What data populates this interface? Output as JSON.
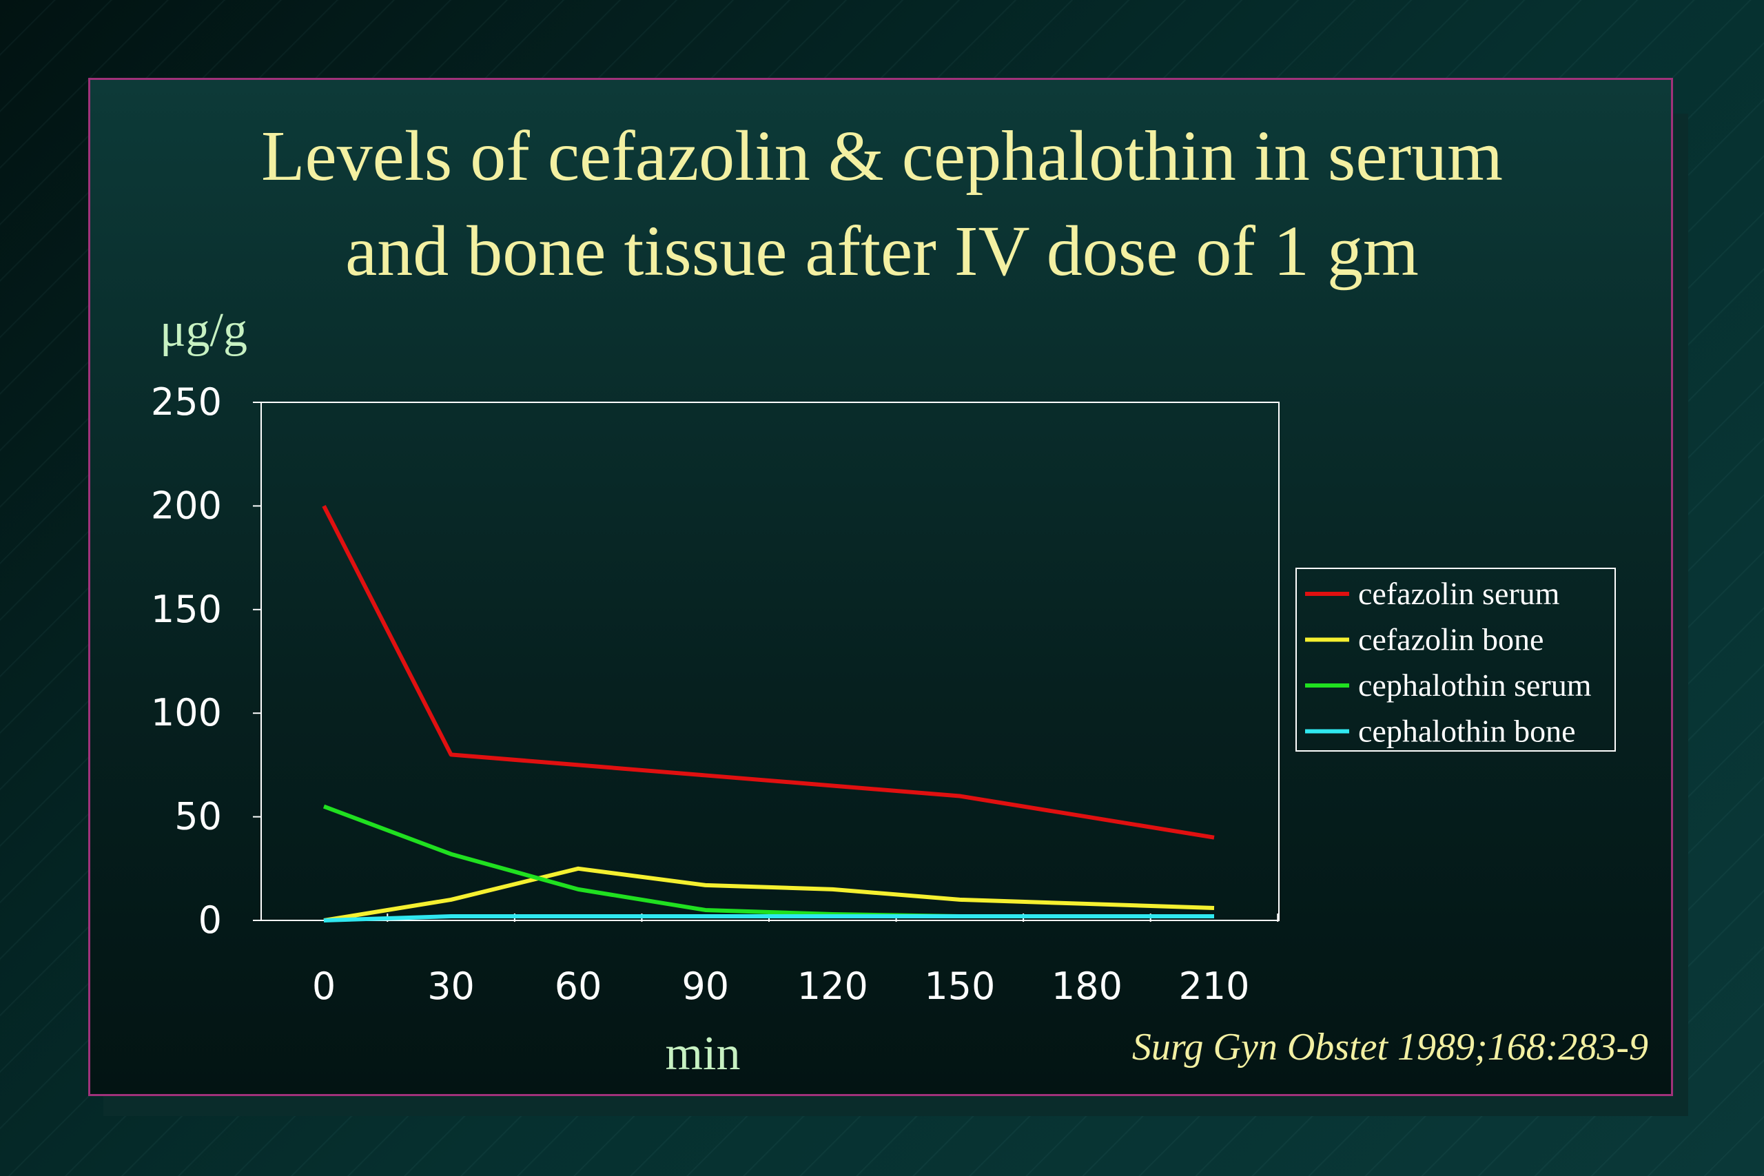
{
  "slide": {
    "title_line1": "Levels of cefazolin & cephalothin in serum",
    "title_line2": "and bone tissue after IV dose of 1 gm",
    "y_units": "μg/g",
    "x_units": "min",
    "citation": "Surg Gyn Obstet 1989;168:283-9"
  },
  "colors": {
    "title": "#f3f0a2",
    "border": "#a0327a",
    "axis_label": "#c7f1c2"
  },
  "chart_data": {
    "type": "line",
    "title": "Levels of cefazolin & cephalothin in serum and bone tissue after IV dose of 1 gm",
    "xlabel": "min",
    "ylabel": "μg/g",
    "x": [
      0,
      30,
      60,
      90,
      120,
      150,
      180,
      210
    ],
    "x_ticks": [
      "0",
      "30",
      "60",
      "90",
      "120",
      "150",
      "180",
      "210"
    ],
    "ylim": [
      0,
      250
    ],
    "y_ticks": [
      "0",
      "50",
      "100",
      "150",
      "200",
      "250"
    ],
    "grid": false,
    "legend_position": "right",
    "series": [
      {
        "name": "cefazolin serum",
        "color": "#e01010",
        "values": [
          200,
          80,
          75,
          70,
          65,
          60,
          50,
          40
        ]
      },
      {
        "name": "cefazolin bone",
        "color": "#f5f030",
        "values": [
          0,
          10,
          25,
          17,
          15,
          10,
          8,
          6
        ]
      },
      {
        "name": "cephalothin serum",
        "color": "#20e020",
        "values": [
          55,
          32,
          15,
          5,
          3,
          2,
          2,
          2
        ]
      },
      {
        "name": "cephalothin bone",
        "color": "#30e8f0",
        "values": [
          0,
          2,
          2,
          2,
          2,
          2,
          2,
          2
        ]
      }
    ]
  }
}
